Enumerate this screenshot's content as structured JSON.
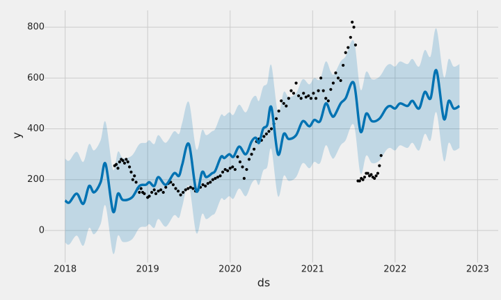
{
  "chart_data": {
    "type": "line",
    "x_label": "ds",
    "y_label": "y",
    "xlim": [
      2017.75,
      2023.25
    ],
    "ylim": [
      -126,
      866
    ],
    "xticks": [
      2018,
      2019,
      2020,
      2021,
      2022,
      2023
    ],
    "yticks": [
      0,
      200,
      400,
      600,
      800
    ],
    "grid": true,
    "forecast": {
      "color": "#0072B2",
      "x": [
        2018.0,
        2018.05,
        2018.14,
        2018.22,
        2018.29,
        2018.35,
        2018.43,
        2018.49,
        2018.58,
        2018.64,
        2018.7,
        2018.81,
        2018.9,
        2018.98,
        2019.02,
        2019.08,
        2019.13,
        2019.22,
        2019.32,
        2019.38,
        2019.42,
        2019.5,
        2019.59,
        2019.66,
        2019.71,
        2019.78,
        2019.82,
        2019.89,
        2019.93,
        2019.99,
        2020.04,
        2020.11,
        2020.19,
        2020.26,
        2020.31,
        2020.35,
        2020.4,
        2020.45,
        2020.5,
        2020.58,
        2020.65,
        2020.71,
        2020.8,
        2020.88,
        2020.96,
        2021.02,
        2021.09,
        2021.16,
        2021.22,
        2021.26,
        2021.34,
        2021.4,
        2021.5,
        2021.58,
        2021.65,
        2021.72,
        2021.81,
        2021.89,
        2021.94,
        2022.0,
        2022.06,
        2022.15,
        2022.21,
        2022.29,
        2022.36,
        2022.43,
        2022.5,
        2022.59,
        2022.65,
        2022.71,
        2022.78
      ],
      "values": [
        118,
        110,
        145,
        105,
        175,
        150,
        190,
        262,
        75,
        145,
        120,
        130,
        175,
        180,
        190,
        175,
        210,
        180,
        225,
        215,
        260,
        340,
        155,
        230,
        210,
        225,
        235,
        290,
        285,
        300,
        290,
        330,
        300,
        350,
        365,
        345,
        400,
        415,
        485,
        300,
        380,
        360,
        375,
        430,
        410,
        435,
        430,
        500,
        460,
        450,
        500,
        520,
        580,
        390,
        460,
        430,
        440,
        480,
        490,
        480,
        500,
        490,
        510,
        480,
        545,
        520,
        630,
        440,
        510,
        480,
        490
      ],
      "lower": [
        -47,
        -55,
        -20,
        -60,
        10,
        -15,
        25,
        97,
        -90,
        -20,
        -45,
        -35,
        10,
        15,
        25,
        10,
        45,
        15,
        60,
        50,
        95,
        175,
        -10,
        65,
        45,
        60,
        70,
        125,
        120,
        135,
        125,
        165,
        135,
        185,
        200,
        180,
        235,
        250,
        320,
        135,
        215,
        195,
        210,
        265,
        245,
        270,
        265,
        335,
        295,
        285,
        335,
        355,
        415,
        225,
        295,
        265,
        275,
        315,
        325,
        315,
        335,
        325,
        345,
        315,
        380,
        355,
        465,
        275,
        345,
        315,
        325
      ],
      "upper": [
        283,
        275,
        310,
        270,
        340,
        315,
        355,
        427,
        240,
        310,
        285,
        295,
        340,
        345,
        355,
        340,
        375,
        345,
        390,
        380,
        425,
        505,
        320,
        395,
        375,
        390,
        400,
        455,
        450,
        465,
        455,
        495,
        465,
        515,
        530,
        510,
        565,
        580,
        650,
        465,
        545,
        525,
        540,
        595,
        575,
        600,
        595,
        665,
        625,
        615,
        665,
        685,
        745,
        555,
        625,
        595,
        605,
        645,
        655,
        645,
        665,
        655,
        675,
        645,
        710,
        685,
        795,
        605,
        675,
        645,
        655
      ]
    },
    "observed": {
      "color": "#000000",
      "x": [
        2018.6,
        2018.62,
        2018.64,
        2018.66,
        2018.68,
        2018.7,
        2018.72,
        2018.74,
        2018.76,
        2018.78,
        2018.8,
        2018.82,
        2018.84,
        2018.86,
        2018.88,
        2018.9,
        2018.92,
        2018.94,
        2018.96,
        2019.0,
        2019.02,
        2019.05,
        2019.08,
        2019.1,
        2019.13,
        2019.16,
        2019.19,
        2019.22,
        2019.25,
        2019.28,
        2019.31,
        2019.34,
        2019.37,
        2019.4,
        2019.43,
        2019.46,
        2019.49,
        2019.52,
        2019.55,
        2019.58,
        2019.61,
        2019.64,
        2019.67,
        2019.7,
        2019.73,
        2019.76,
        2019.79,
        2019.82,
        2019.85,
        2019.88,
        2019.91,
        2019.94,
        2019.97,
        2020.0,
        2020.03,
        2020.06,
        2020.09,
        2020.12,
        2020.15,
        2020.17,
        2020.2,
        2020.23,
        2020.26,
        2020.29,
        2020.32,
        2020.35,
        2020.38,
        2020.41,
        2020.44,
        2020.47,
        2020.5,
        2020.53,
        2020.56,
        2020.59,
        2020.62,
        2020.65,
        2020.68,
        2020.71,
        2020.74,
        2020.77,
        2020.8,
        2020.83,
        2020.86,
        2020.89,
        2020.92,
        2020.95,
        2020.98,
        2021.01,
        2021.04,
        2021.07,
        2021.1,
        2021.13,
        2021.16,
        2021.19,
        2021.22,
        2021.25,
        2021.28,
        2021.31,
        2021.34,
        2021.37,
        2021.4,
        2021.43,
        2021.46,
        2021.48,
        2021.5,
        2021.52,
        2021.55,
        2021.57,
        2021.59,
        2021.61,
        2021.63,
        2021.65,
        2021.67,
        2021.69,
        2021.71,
        2021.73,
        2021.75,
        2021.77,
        2021.79,
        2021.81,
        2021.83
      ],
      "values": [
        255,
        260,
        245,
        270,
        280,
        275,
        265,
        280,
        270,
        250,
        230,
        200,
        215,
        190,
        165,
        150,
        165,
        150,
        145,
        130,
        135,
        150,
        160,
        145,
        155,
        160,
        150,
        170,
        185,
        190,
        180,
        165,
        155,
        140,
        150,
        160,
        165,
        170,
        165,
        155,
        160,
        170,
        180,
        175,
        185,
        190,
        200,
        205,
        210,
        215,
        230,
        240,
        235,
        245,
        250,
        240,
        290,
        270,
        250,
        205,
        240,
        280,
        300,
        320,
        350,
        360,
        355,
        370,
        380,
        390,
        400,
        420,
        440,
        470,
        510,
        500,
        490,
        520,
        550,
        540,
        580,
        530,
        520,
        540,
        525,
        530,
        520,
        540,
        520,
        550,
        600,
        550,
        520,
        510,
        555,
        580,
        620,
        600,
        590,
        650,
        700,
        720,
        760,
        820,
        800,
        730,
        195,
        195,
        205,
        200,
        210,
        225,
        225,
        215,
        220,
        210,
        205,
        215,
        225,
        255,
        295
      ]
    }
  }
}
